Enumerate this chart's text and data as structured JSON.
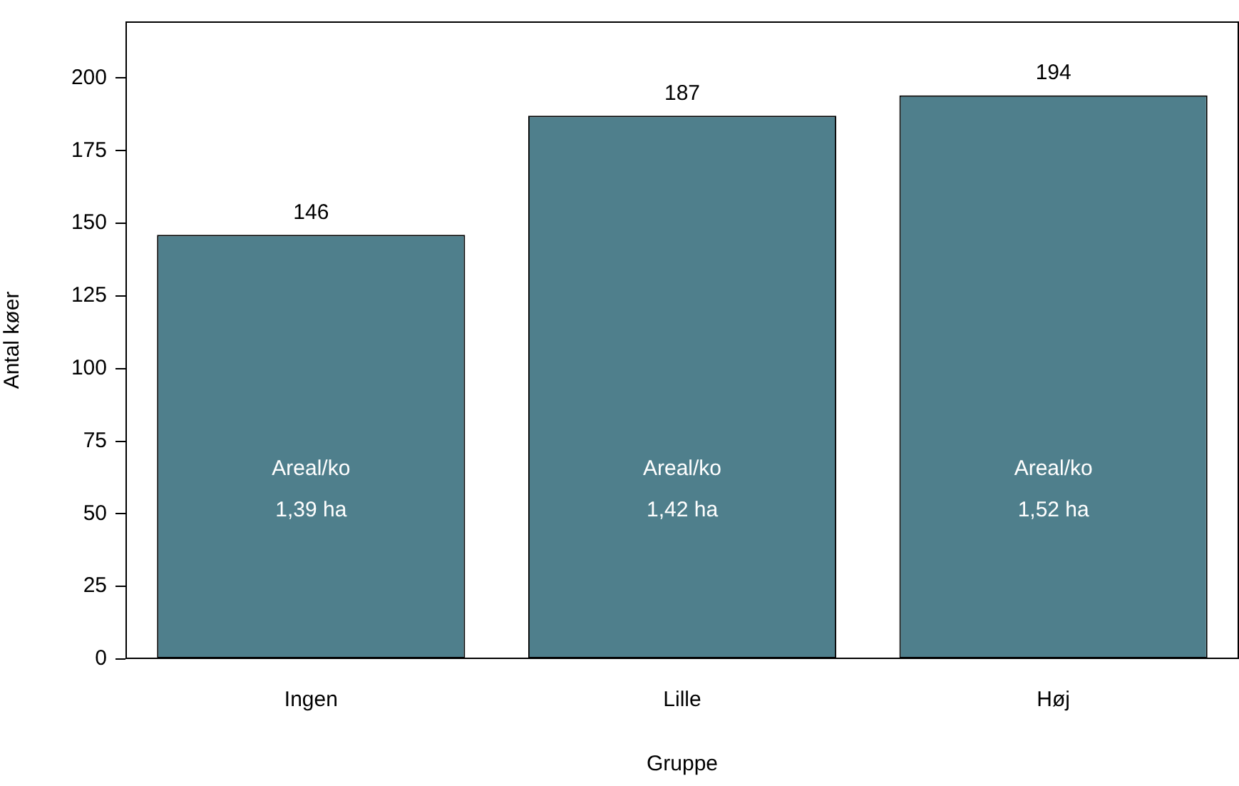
{
  "chart_data": {
    "type": "bar",
    "xlabel": "Gruppe",
    "ylabel": "Antal køer",
    "categories": [
      "Ingen",
      "Lille",
      "Høj"
    ],
    "values": [
      146,
      187,
      194
    ],
    "color": "#4f7f8c",
    "ylim": [
      0,
      219.5
    ],
    "yticks": [
      0,
      25,
      50,
      75,
      100,
      125,
      150,
      175,
      200
    ],
    "grid": false,
    "legend": false,
    "data_labels": true,
    "annotations": [
      "Areal/ko",
      "Areal/ko",
      "Areal/ko",
      "1,39 ha",
      "1,42 ha",
      "1,52 ha"
    ]
  }
}
